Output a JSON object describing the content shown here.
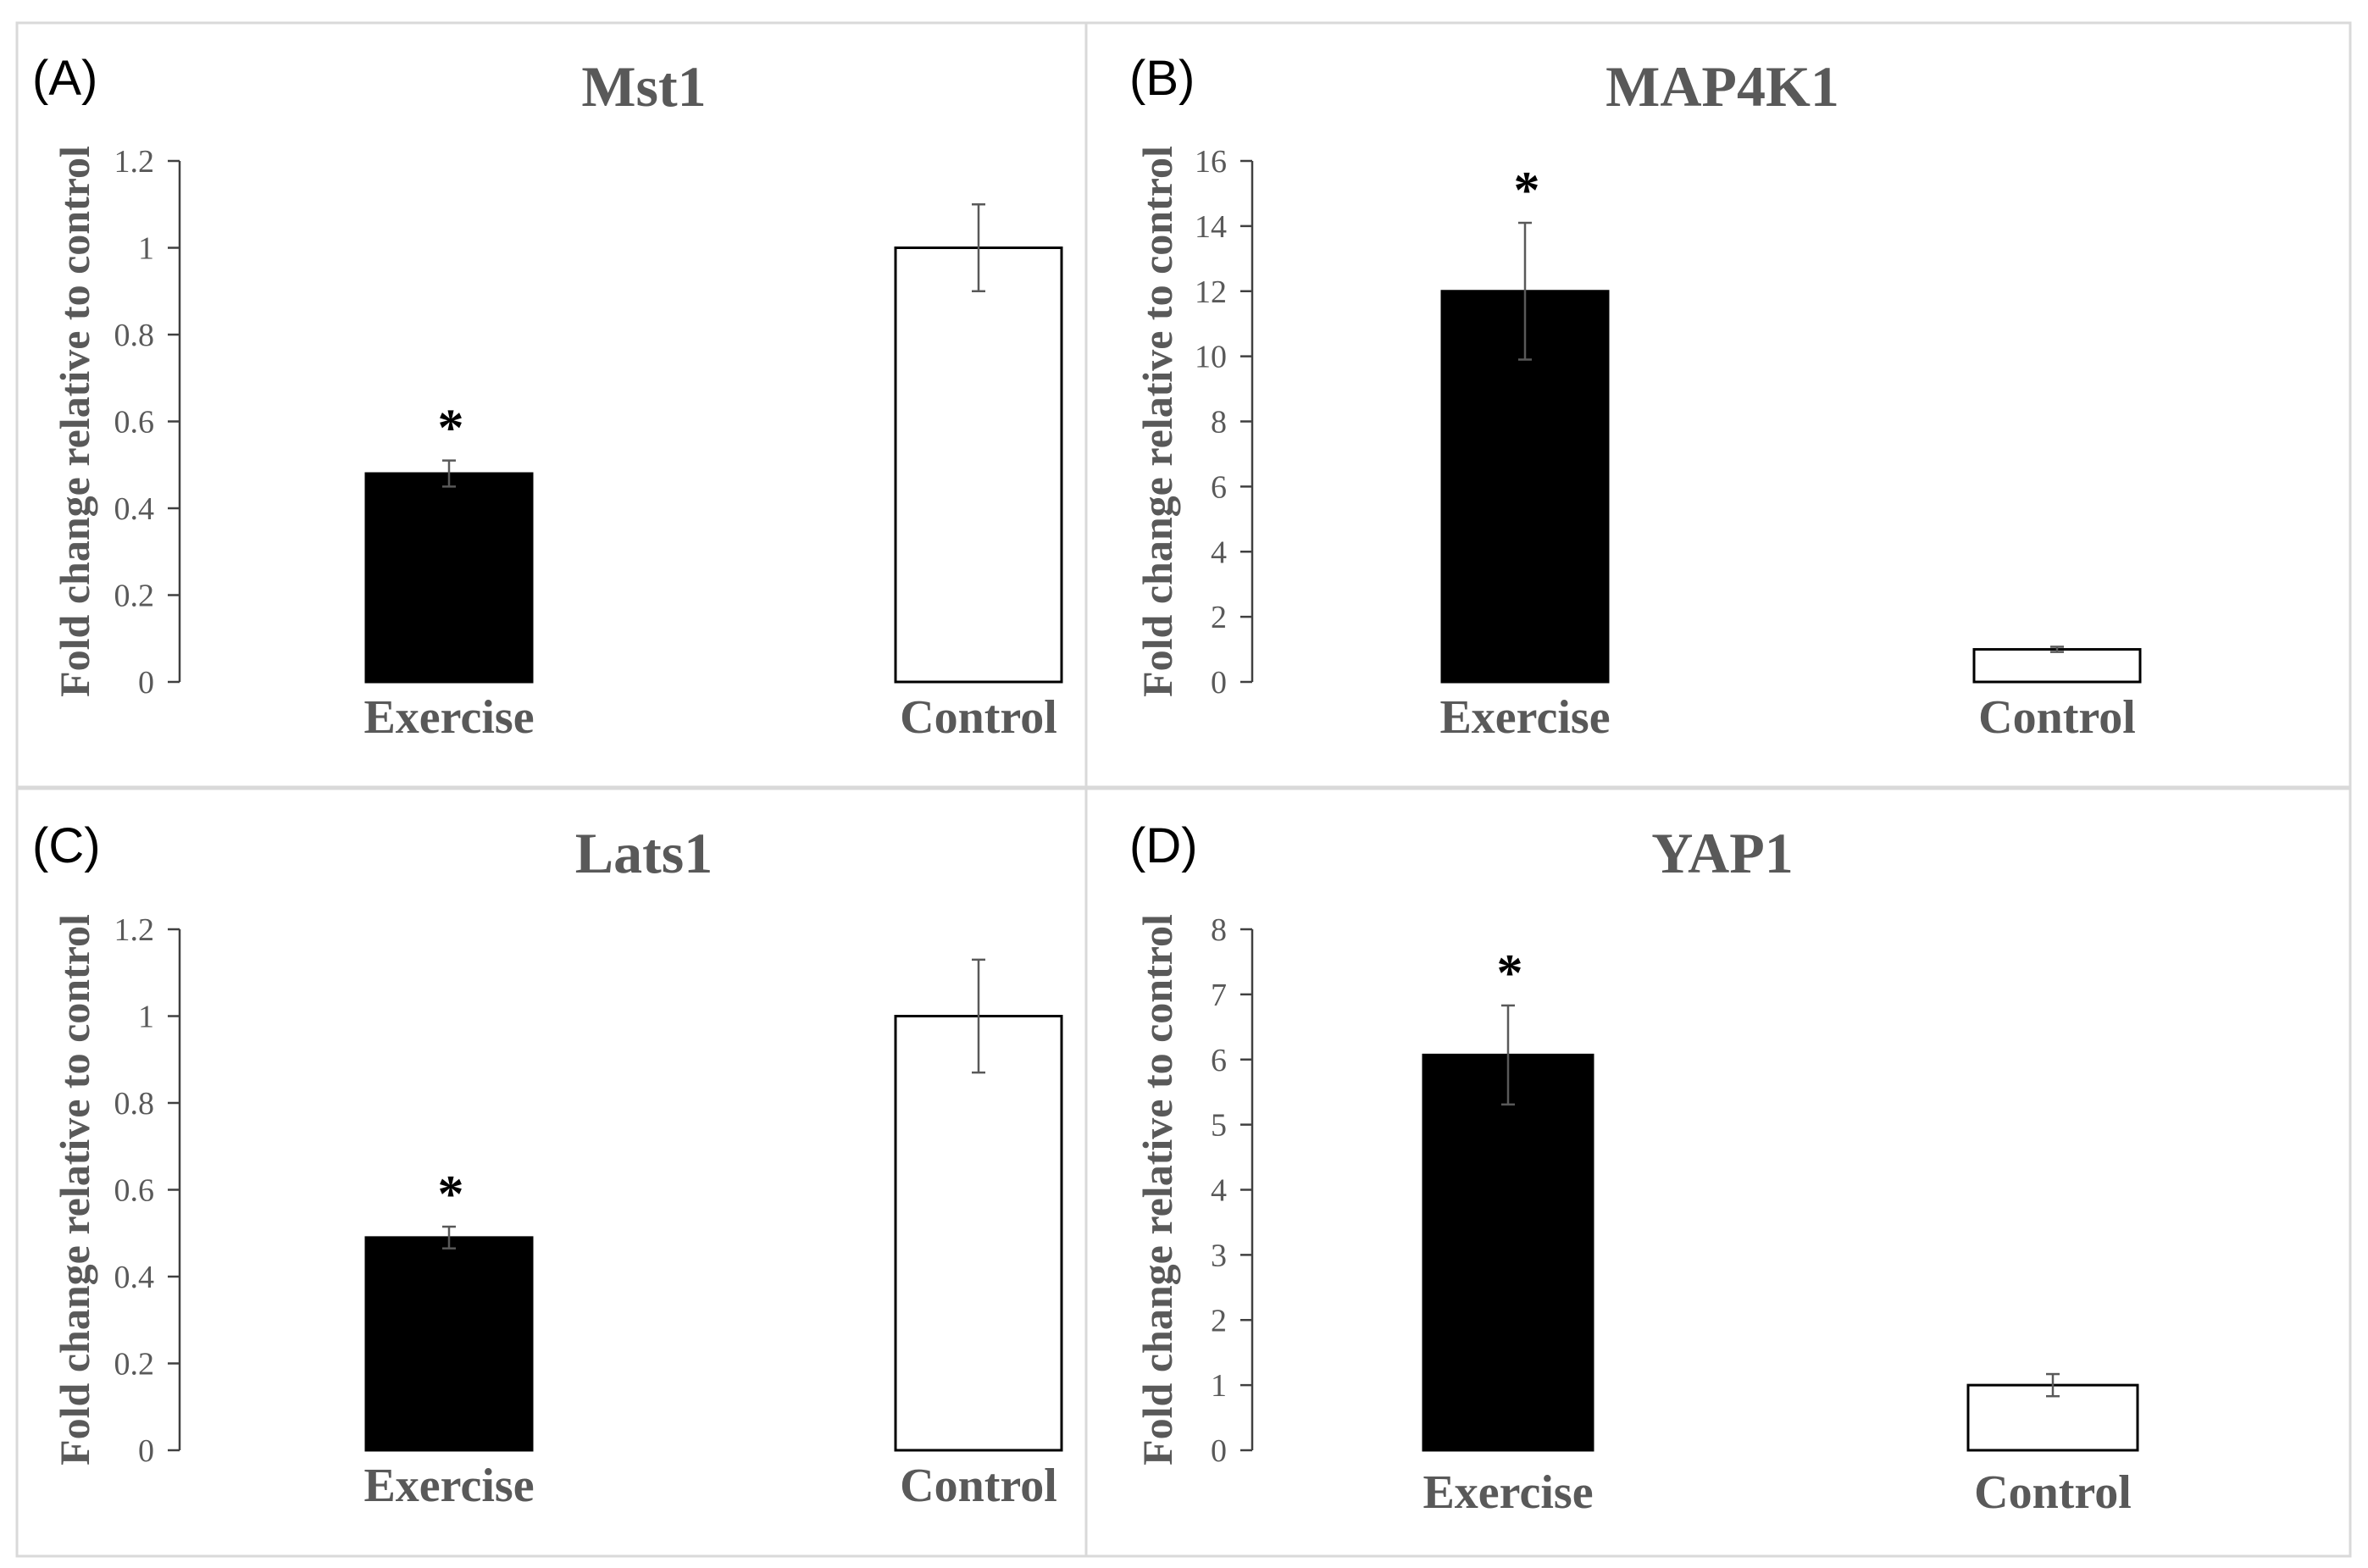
{
  "figure": {
    "ylabel": "Fold change relative to control"
  },
  "chart_data": [
    {
      "panel": "(A)",
      "type": "bar",
      "title": "Mst1",
      "categories": [
        "Exercise",
        "Control"
      ],
      "values": [
        0.48,
        1.0
      ],
      "errors": [
        0.03,
        0.1
      ],
      "significance": [
        "*",
        ""
      ],
      "bar_colors": [
        "#000000",
        "#ffffff"
      ],
      "ylabel": "Fold change relative to control",
      "ylim": [
        0,
        1.2
      ],
      "yticks": [
        "0",
        "0.2",
        "0.4",
        "0.6",
        "0.8",
        "1",
        "1.2"
      ]
    },
    {
      "panel": "(B)",
      "type": "bar",
      "title": "MAP4K1",
      "categories": [
        "Exercise",
        "Control"
      ],
      "values": [
        12.0,
        1.0
      ],
      "errors": [
        2.1,
        0.08
      ],
      "significance": [
        "*",
        ""
      ],
      "bar_colors": [
        "#000000",
        "#ffffff"
      ],
      "ylabel": "Fold change relative to control",
      "ylim": [
        0,
        16
      ],
      "yticks": [
        "0",
        "2",
        "4",
        "6",
        "8",
        "10",
        "12",
        "14",
        "16"
      ]
    },
    {
      "panel": "(C)",
      "type": "bar",
      "title": "Lats1",
      "categories": [
        "Exercise",
        "Control"
      ],
      "values": [
        0.49,
        1.0
      ],
      "errors": [
        0.025,
        0.13
      ],
      "significance": [
        "*",
        ""
      ],
      "bar_colors": [
        "#000000",
        "#ffffff"
      ],
      "ylabel": "Fold change relative to control",
      "ylim": [
        0,
        1.2
      ],
      "yticks": [
        "0",
        "0.2",
        "0.4",
        "0.6",
        "0.8",
        "1",
        "1.2"
      ]
    },
    {
      "panel": "(D)",
      "type": "bar",
      "title": "YAP1",
      "categories": [
        "Exercise",
        "Control"
      ],
      "values": [
        6.07,
        1.0
      ],
      "errors": [
        0.76,
        0.17
      ],
      "significance": [
        "*",
        ""
      ],
      "bar_colors": [
        "#000000",
        "#ffffff"
      ],
      "ylabel": "Fold change relative to control",
      "ylim": [
        0,
        8
      ],
      "yticks": [
        "0",
        "1",
        "2",
        "3",
        "4",
        "5",
        "6",
        "7",
        "8"
      ]
    }
  ]
}
